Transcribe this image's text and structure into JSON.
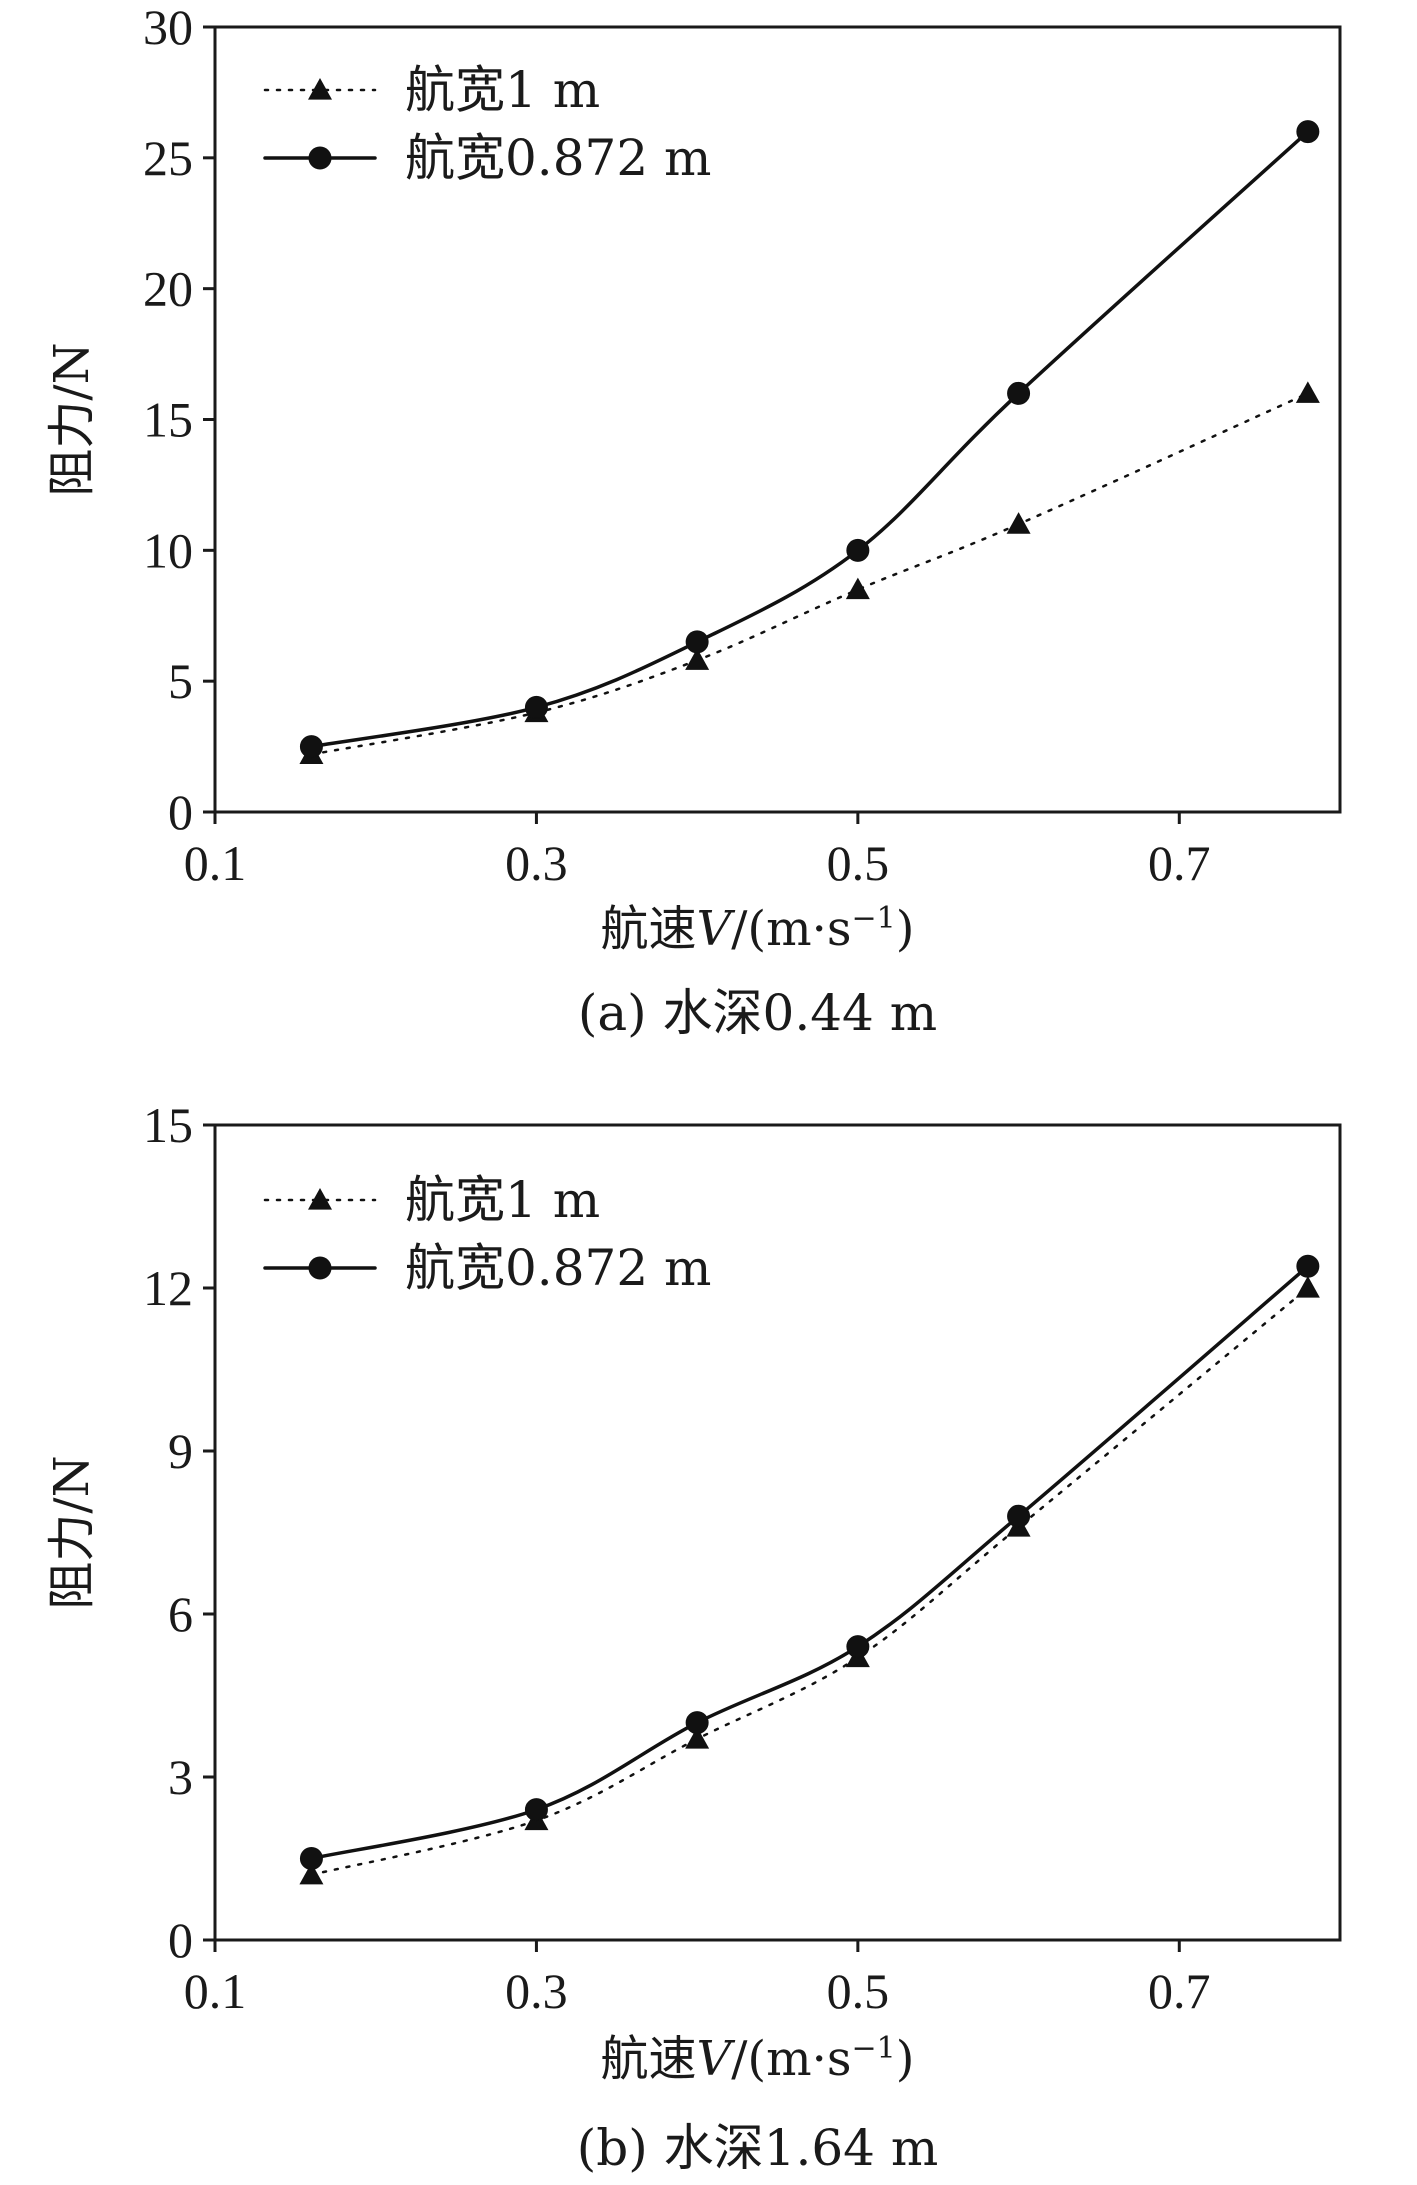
{
  "chart_data": [
    {
      "type": "line",
      "panel": "a",
      "caption": "(a) 水深0.44 m",
      "xlabel_prefix": "航速",
      "xlabel_var": "V",
      "xlabel_unit": "/(m·s",
      "xlabel_exp": "−1",
      "xlabel_close": ")",
      "ylabel": "阻力/N",
      "xlim": [
        0.1,
        0.8
      ],
      "ylim": [
        0,
        30
      ],
      "xticks": [
        0.1,
        0.3,
        0.5,
        0.7
      ],
      "xtick_labels": [
        "0.1",
        "0.3",
        "0.5",
        "0.7"
      ],
      "yticks": [
        0,
        5,
        10,
        15,
        20,
        25,
        30
      ],
      "ytick_labels": [
        "0",
        "5",
        "10",
        "15",
        "20",
        "25",
        "30"
      ],
      "legend_position": "top-left",
      "series": [
        {
          "name": "航宽1 m",
          "marker": "triangle",
          "line_style": "dotted",
          "x": [
            0.16,
            0.3,
            0.4,
            0.5,
            0.6,
            0.78
          ],
          "y": [
            2.2,
            3.8,
            5.8,
            8.5,
            11.0,
            16.0
          ]
        },
        {
          "name": "航宽0.872 m",
          "marker": "circle",
          "line_style": "solid",
          "x": [
            0.16,
            0.3,
            0.4,
            0.5,
            0.6,
            0.78
          ],
          "y": [
            2.5,
            4.0,
            6.5,
            10.0,
            16.0,
            26.0
          ]
        }
      ]
    },
    {
      "type": "line",
      "panel": "b",
      "caption": "(b) 水深1.64 m",
      "xlabel_prefix": "航速",
      "xlabel_var": "V",
      "xlabel_unit": "/(m·s",
      "xlabel_exp": "−1",
      "xlabel_close": ")",
      "ylabel": "阻力/N",
      "xlim": [
        0.1,
        0.8
      ],
      "ylim": [
        0,
        15
      ],
      "xticks": [
        0.1,
        0.3,
        0.5,
        0.7
      ],
      "xtick_labels": [
        "0.1",
        "0.3",
        "0.5",
        "0.7"
      ],
      "yticks": [
        0,
        3,
        6,
        9,
        12,
        15
      ],
      "ytick_labels": [
        "0",
        "3",
        "6",
        "9",
        "12",
        "15"
      ],
      "legend_position": "top-left",
      "series": [
        {
          "name": "航宽1 m",
          "marker": "triangle",
          "line_style": "dotted",
          "x": [
            0.16,
            0.3,
            0.4,
            0.5,
            0.6,
            0.78
          ],
          "y": [
            1.2,
            2.2,
            3.7,
            5.2,
            7.6,
            12.0
          ]
        },
        {
          "name": "航宽0.872 m",
          "marker": "circle",
          "line_style": "solid",
          "x": [
            0.16,
            0.3,
            0.4,
            0.5,
            0.6,
            0.78
          ],
          "y": [
            1.5,
            2.4,
            4.0,
            5.4,
            7.8,
            12.4
          ]
        }
      ]
    }
  ]
}
